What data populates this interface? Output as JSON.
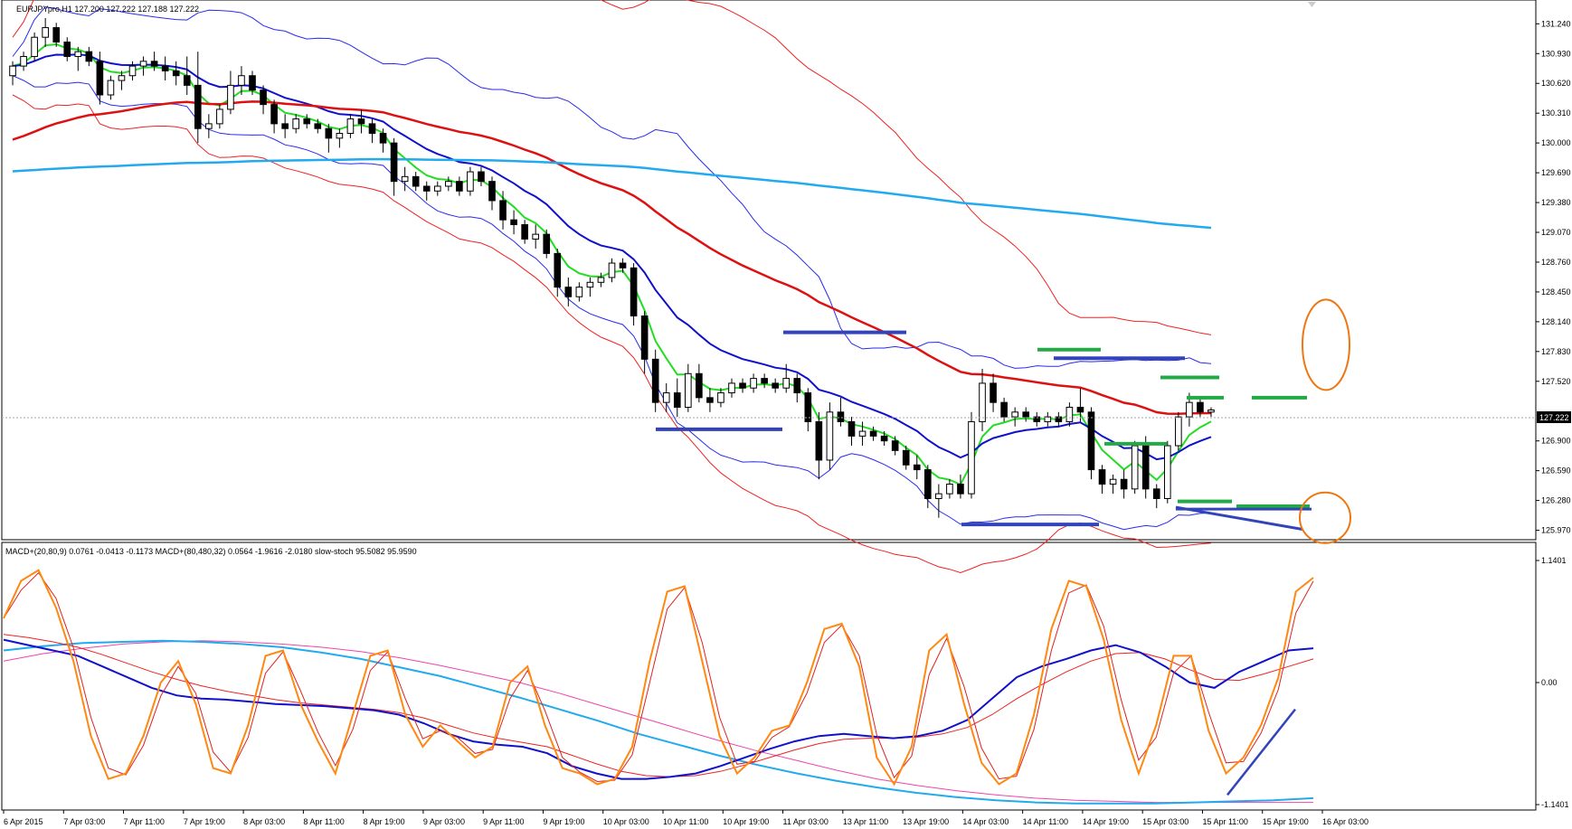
{
  "window": {
    "symbol_header": "EURJPYpro,H1  127.200 127.222 127.188 127.222",
    "current_price_label": "127.222"
  },
  "indicator_header": "MACD+(20,80,9) 0.0761 -0.0413 -0.1173  MACD+(80,480,32) 0.0564 -1.9616 -2.0180  slow-stoch 95.5082 95.9590",
  "price_axis": [
    "131.240",
    "130.930",
    "130.620",
    "130.310",
    "130.000",
    "129.690",
    "129.380",
    "129.070",
    "128.760",
    "128.450",
    "128.140",
    "127.830",
    "127.520",
    "127.222",
    "126.900",
    "126.590",
    "126.280",
    "125.970"
  ],
  "osc_axis": [
    "1.1401",
    "0.00",
    "-1.1401"
  ],
  "time_axis": [
    "6 Apr 2015",
    "7 Apr 03:00",
    "7 Apr 11:00",
    "7 Apr 19:00",
    "8 Apr 03:00",
    "8 Apr 11:00",
    "8 Apr 19:00",
    "9 Apr 03:00",
    "9 Apr 11:00",
    "9 Apr 19:00",
    "10 Apr 03:00",
    "10 Apr 11:00",
    "10 Apr 19:00",
    "11 Apr 03:00",
    "13 Apr 11:00",
    "13 Apr 19:00",
    "14 Apr 03:00",
    "14 Apr 11:00",
    "14 Apr 19:00",
    "15 Apr 03:00",
    "15 Apr 11:00",
    "15 Apr 19:00",
    "16 Apr 03:00"
  ],
  "colors": {
    "ema_fast": "#22dd22",
    "ema_mid": "#1010cc",
    "ema_slow": "#dd1111",
    "ema_long": "#22aaee",
    "bb_outer": "#ee2222",
    "bb_inner": "#2a2aee",
    "level_blue": "#3344bb",
    "level_green": "#22aa44",
    "circle": "#ee7711",
    "stoch": "#ff8811",
    "stoch_signal": "#dd2222",
    "macd_fast": "#1111cc",
    "macd_signal": "#ee2222",
    "macd_slow": "#22aaee",
    "macd_slow_signal": "#ee44aa"
  },
  "chart_data": [
    {
      "type": "candlestick",
      "title": "EURJPYpro,H1",
      "ylim": [
        125.9,
        131.45
      ],
      "candles": [
        [
          130.7,
          130.85,
          130.6,
          130.8
        ],
        [
          130.8,
          130.95,
          130.75,
          130.9
        ],
        [
          130.9,
          131.15,
          130.85,
          131.1
        ],
        [
          131.1,
          131.3,
          131.0,
          131.2
        ],
        [
          131.2,
          131.25,
          131.0,
          131.05
        ],
        [
          131.05,
          131.1,
          130.85,
          130.9
        ],
        [
          130.9,
          131.0,
          130.75,
          130.95
        ],
        [
          130.95,
          131.0,
          130.8,
          130.85
        ],
        [
          130.85,
          130.95,
          130.4,
          130.5
        ],
        [
          130.5,
          130.7,
          130.45,
          130.65
        ],
        [
          130.65,
          130.75,
          130.55,
          130.7
        ],
        [
          130.7,
          130.85,
          130.65,
          130.8
        ],
        [
          130.8,
          130.9,
          130.7,
          130.85
        ],
        [
          130.85,
          130.95,
          130.75,
          130.8
        ],
        [
          130.8,
          130.9,
          130.65,
          130.75
        ],
        [
          130.75,
          130.85,
          130.6,
          130.7
        ],
        [
          130.7,
          130.9,
          130.5,
          130.6
        ],
        [
          130.6,
          130.95,
          130.0,
          130.15
        ],
        [
          130.15,
          130.3,
          130.05,
          130.2
        ],
        [
          130.2,
          130.4,
          130.15,
          130.35
        ],
        [
          130.35,
          130.75,
          130.3,
          130.6
        ],
        [
          130.6,
          130.8,
          130.5,
          130.7
        ],
        [
          130.7,
          130.75,
          130.5,
          130.55
        ],
        [
          130.55,
          130.6,
          130.3,
          130.4
        ],
        [
          130.4,
          130.45,
          130.1,
          130.2
        ],
        [
          130.2,
          130.3,
          130.05,
          130.15
        ],
        [
          130.15,
          130.3,
          130.1,
          130.25
        ],
        [
          130.25,
          130.3,
          130.15,
          130.2
        ],
        [
          130.2,
          130.25,
          130.1,
          130.15
        ],
        [
          130.15,
          130.2,
          129.9,
          130.05
        ],
        [
          130.05,
          130.15,
          129.95,
          130.1
        ],
        [
          130.1,
          130.3,
          130.05,
          130.25
        ],
        [
          130.25,
          130.35,
          130.1,
          130.2
        ],
        [
          130.2,
          130.25,
          130.0,
          130.1
        ],
        [
          130.1,
          130.15,
          129.9,
          130.0
        ],
        [
          130.0,
          130.05,
          129.45,
          129.6
        ],
        [
          129.6,
          129.75,
          129.5,
          129.65
        ],
        [
          129.65,
          129.7,
          129.5,
          129.55
        ],
        [
          129.55,
          129.6,
          129.4,
          129.5
        ],
        [
          129.5,
          129.6,
          129.45,
          129.55
        ],
        [
          129.55,
          129.65,
          129.5,
          129.6
        ],
        [
          129.6,
          129.65,
          129.45,
          129.5
        ],
        [
          129.5,
          129.75,
          129.45,
          129.7
        ],
        [
          129.7,
          129.75,
          129.55,
          129.6
        ],
        [
          129.6,
          129.65,
          129.3,
          129.4
        ],
        [
          129.4,
          129.5,
          129.1,
          129.2
        ],
        [
          129.2,
          129.3,
          129.05,
          129.15
        ],
        [
          129.15,
          129.2,
          128.95,
          129.0
        ],
        [
          129.0,
          129.15,
          128.9,
          129.05
        ],
        [
          129.05,
          129.1,
          128.8,
          128.85
        ],
        [
          128.85,
          128.9,
          128.4,
          128.5
        ],
        [
          128.5,
          128.6,
          128.3,
          128.4
        ],
        [
          128.4,
          128.55,
          128.35,
          128.5
        ],
        [
          128.5,
          128.6,
          128.4,
          128.55
        ],
        [
          128.55,
          128.65,
          128.5,
          128.6
        ],
        [
          128.6,
          128.8,
          128.55,
          128.75
        ],
        [
          128.75,
          128.8,
          128.65,
          128.7
        ],
        [
          128.7,
          128.75,
          128.1,
          128.2
        ],
        [
          128.2,
          128.25,
          127.6,
          127.75
        ],
        [
          127.75,
          127.85,
          127.2,
          127.3
        ],
        [
          127.3,
          127.5,
          127.2,
          127.4
        ],
        [
          127.4,
          127.55,
          127.15,
          127.25
        ],
        [
          127.25,
          127.7,
          127.2,
          127.6
        ],
        [
          127.6,
          127.7,
          127.3,
          127.35
        ],
        [
          127.35,
          127.45,
          127.2,
          127.3
        ],
        [
          127.3,
          127.45,
          127.25,
          127.4
        ],
        [
          127.4,
          127.55,
          127.35,
          127.5
        ],
        [
          127.5,
          127.55,
          127.4,
          127.45
        ],
        [
          127.45,
          127.6,
          127.4,
          127.55
        ],
        [
          127.55,
          127.6,
          127.45,
          127.5
        ],
        [
          127.5,
          127.55,
          127.4,
          127.45
        ],
        [
          127.45,
          127.7,
          127.4,
          127.55
        ],
        [
          127.55,
          127.6,
          127.3,
          127.4
        ],
        [
          127.4,
          127.45,
          127.0,
          127.1
        ],
        [
          127.1,
          127.2,
          126.5,
          126.7
        ],
        [
          126.7,
          127.3,
          126.6,
          127.2
        ],
        [
          127.2,
          127.35,
          127.05,
          127.1
        ],
        [
          127.1,
          127.15,
          126.85,
          126.95
        ],
        [
          126.95,
          127.1,
          126.85,
          127.0
        ],
        [
          127.0,
          127.05,
          126.9,
          126.95
        ],
        [
          126.95,
          127.0,
          126.85,
          126.9
        ],
        [
          126.9,
          126.95,
          126.75,
          126.8
        ],
        [
          126.8,
          126.85,
          126.6,
          126.65
        ],
        [
          126.65,
          126.75,
          126.5,
          126.6
        ],
        [
          126.6,
          126.65,
          126.2,
          126.3
        ],
        [
          126.3,
          126.45,
          126.1,
          126.35
        ],
        [
          126.35,
          126.5,
          126.3,
          126.45
        ],
        [
          126.45,
          126.55,
          126.3,
          126.35
        ],
        [
          126.35,
          127.2,
          126.3,
          127.1
        ],
        [
          127.1,
          127.65,
          127.0,
          127.5
        ],
        [
          127.5,
          127.6,
          127.2,
          127.3
        ],
        [
          127.3,
          127.35,
          127.1,
          127.15
        ],
        [
          127.15,
          127.25,
          127.05,
          127.2
        ],
        [
          127.2,
          127.25,
          127.1,
          127.15
        ],
        [
          127.15,
          127.2,
          127.05,
          127.1
        ],
        [
          127.1,
          127.2,
          127.05,
          127.15
        ],
        [
          127.15,
          127.2,
          127.05,
          127.1
        ],
        [
          127.1,
          127.3,
          127.05,
          127.25
        ],
        [
          127.25,
          127.45,
          127.1,
          127.2
        ],
        [
          127.2,
          127.25,
          126.5,
          126.6
        ],
        [
          126.6,
          126.65,
          126.35,
          126.45
        ],
        [
          126.45,
          126.55,
          126.35,
          126.5
        ],
        [
          126.5,
          126.6,
          126.3,
          126.4
        ],
        [
          126.4,
          126.9,
          126.35,
          126.85
        ],
        [
          126.85,
          126.95,
          126.3,
          126.4
        ],
        [
          126.4,
          126.45,
          126.2,
          126.3
        ],
        [
          126.3,
          126.9,
          126.25,
          126.85
        ],
        [
          126.85,
          127.2,
          126.8,
          127.15
        ],
        [
          127.15,
          127.4,
          127.05,
          127.3
        ],
        [
          127.3,
          127.35,
          127.15,
          127.2
        ],
        [
          127.2,
          127.25,
          127.15,
          127.222
        ]
      ]
    },
    {
      "type": "line",
      "title": "MACD+(20,80,9) MACD+(80,480,32) slow-stoch",
      "ylim": [
        -1.1401,
        1.1401
      ],
      "series": [
        {
          "name": "stoch",
          "values": [
            0.6,
            0.95,
            1.05,
            0.7,
            0.2,
            -0.5,
            -0.9,
            -0.85,
            -0.5,
            0.0,
            0.2,
            -0.2,
            -0.8,
            -0.85,
            -0.4,
            0.25,
            0.3,
            -0.2,
            -0.55,
            -0.85,
            -0.3,
            0.25,
            0.3,
            -0.3,
            -0.6,
            -0.4,
            -0.55,
            -0.7,
            -0.6,
            0.0,
            0.15,
            -0.4,
            -0.8,
            -0.85,
            -0.95,
            -0.9,
            -0.6,
            0.2,
            0.85,
            0.9,
            0.2,
            -0.5,
            -0.85,
            -0.7,
            -0.45,
            -0.4,
            0.0,
            0.5,
            0.55,
            0.15,
            -0.7,
            -0.95,
            -0.6,
            0.3,
            0.45,
            -0.2,
            -0.75,
            -0.95,
            -0.85,
            -0.3,
            0.5,
            0.95,
            0.9,
            0.4,
            -0.35,
            -0.85,
            -0.4,
            0.25,
            0.25,
            -0.45,
            -0.85,
            -0.7,
            -0.4,
            0.05,
            0.85,
            0.98
          ]
        },
        {
          "name": "macd_fast",
          "values": [
            0.4,
            0.35,
            0.3,
            0.25,
            0.15,
            0.05,
            -0.05,
            -0.12,
            -0.15,
            -0.16,
            -0.18,
            -0.2,
            -0.21,
            -0.22,
            -0.24,
            -0.26,
            -0.3,
            -0.38,
            -0.48,
            -0.55,
            -0.58,
            -0.6,
            -0.66,
            -0.78,
            -0.85,
            -0.9,
            -0.9,
            -0.88,
            -0.85,
            -0.78,
            -0.7,
            -0.62,
            -0.55,
            -0.5,
            -0.48,
            -0.5,
            -0.52,
            -0.5,
            -0.45,
            -0.35,
            -0.15,
            0.05,
            0.15,
            0.22,
            0.3,
            0.35,
            0.28,
            0.15,
            0.0,
            -0.05,
            0.1,
            0.2,
            0.3,
            0.32
          ]
        },
        {
          "name": "macd_signal",
          "values": [
            0.45,
            0.42,
            0.38,
            0.33,
            0.26,
            0.18,
            0.1,
            0.03,
            -0.03,
            -0.08,
            -0.12,
            -0.16,
            -0.19,
            -0.21,
            -0.23,
            -0.25,
            -0.28,
            -0.33,
            -0.4,
            -0.47,
            -0.52,
            -0.56,
            -0.6,
            -0.68,
            -0.76,
            -0.83,
            -0.87,
            -0.88,
            -0.87,
            -0.83,
            -0.77,
            -0.7,
            -0.63,
            -0.57,
            -0.53,
            -0.52,
            -0.52,
            -0.51,
            -0.48,
            -0.42,
            -0.3,
            -0.15,
            -0.02,
            0.1,
            0.2,
            0.27,
            0.28,
            0.22,
            0.12,
            0.03,
            0.02,
            0.08,
            0.15,
            0.22
          ]
        },
        {
          "name": "macd_slow",
          "values": [
            0.3,
            0.34,
            0.37,
            0.38,
            0.39,
            0.38,
            0.36,
            0.33,
            0.28,
            0.22,
            0.14,
            0.06,
            -0.04,
            -0.14,
            -0.25,
            -0.36,
            -0.48,
            -0.58,
            -0.68,
            -0.77,
            -0.85,
            -0.92,
            -0.98,
            -1.03,
            -1.07,
            -1.1,
            -1.12,
            -1.13,
            -1.13,
            -1.13,
            -1.12,
            -1.11,
            -1.1,
            -1.08
          ]
        },
        {
          "name": "macd_slow_signal",
          "values": [
            0.2,
            0.27,
            0.32,
            0.36,
            0.38,
            0.39,
            0.38,
            0.36,
            0.33,
            0.29,
            0.23,
            0.16,
            0.08,
            0.0,
            -0.1,
            -0.21,
            -0.32,
            -0.43,
            -0.54,
            -0.64,
            -0.73,
            -0.82,
            -0.9,
            -0.96,
            -1.01,
            -1.05,
            -1.08,
            -1.1,
            -1.11,
            -1.12,
            -1.12,
            -1.12,
            -1.12,
            -1.12
          ]
        }
      ]
    }
  ]
}
